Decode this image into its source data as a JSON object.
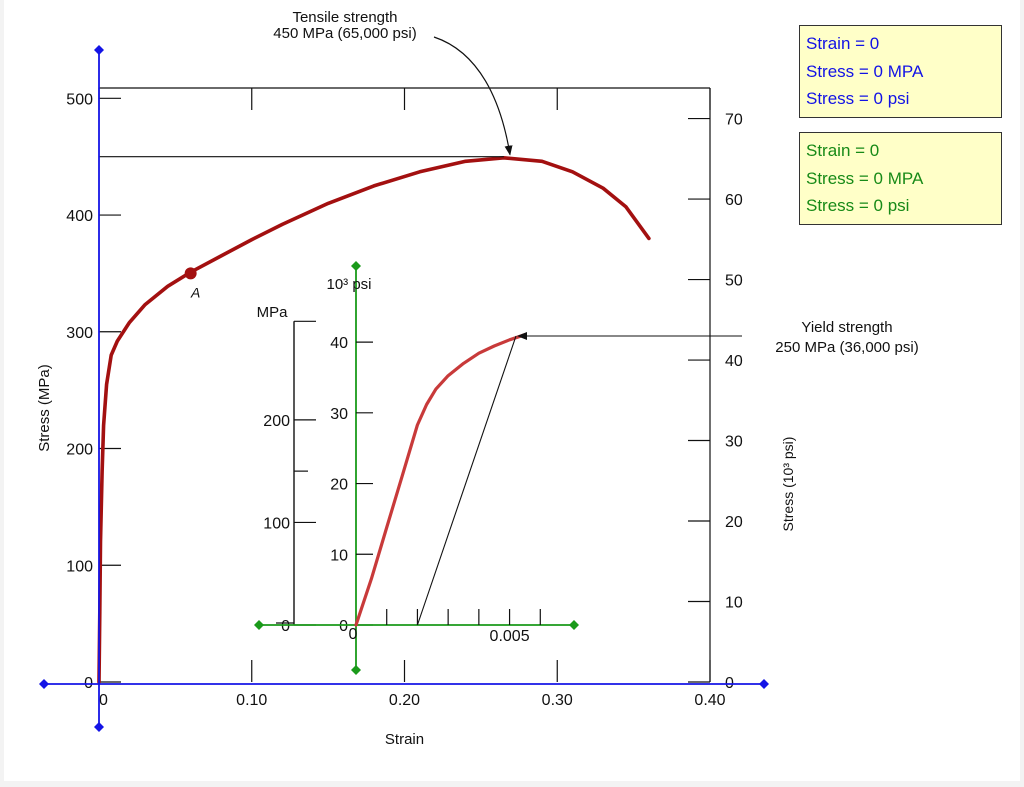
{
  "chart_data": [
    {
      "type": "line",
      "name": "main-plot",
      "xlabel": "Strain",
      "ylabel": "Stress (MPa)",
      "ylabel_right": "Stress (10³ psi)",
      "xlim": [
        0,
        0.4
      ],
      "ylim": [
        0,
        500
      ],
      "x_ticks": [
        "0",
        "0.10",
        "0.20",
        "0.30",
        "0.40"
      ],
      "y_ticks": [
        "0",
        "100",
        "200",
        "300",
        "400",
        "500"
      ],
      "y_right_ticks": [
        "0",
        "10",
        "20",
        "30",
        "40",
        "50",
        "60",
        "70"
      ],
      "series": [
        {
          "color": "#a31010",
          "x": [
            0.0,
            0.0005,
            0.001,
            0.002,
            0.003,
            0.005,
            0.008,
            0.012,
            0.02,
            0.03,
            0.045,
            0.06,
            0.08,
            0.1,
            0.12,
            0.15,
            0.18,
            0.21,
            0.24,
            0.265,
            0.29,
            0.31,
            0.33,
            0.345,
            0.36
          ],
          "y": [
            0,
            60,
            120,
            180,
            220,
            255,
            280,
            292,
            308,
            323,
            339,
            351,
            365,
            379,
            392,
            410,
            425,
            437,
            446,
            449,
            446,
            437,
            423,
            407,
            380
          ]
        }
      ],
      "point": {
        "label": "A",
        "x": 0.06,
        "y": 350
      },
      "annotations": [
        {
          "text": [
            "Tensile strength",
            "450 MPa (65,000 psi)"
          ],
          "x": 0.265,
          "y": 450
        },
        {
          "text": [
            "Yield strength",
            "250 MPa (36,000 psi)"
          ],
          "x": 0.27,
          "y": 300
        }
      ]
    },
    {
      "type": "line",
      "name": "inset-plot",
      "ylabel": "MPa",
      "ylabel_right": "10³ psi",
      "xlim": [
        0,
        0.007
      ],
      "ylim": [
        0,
        310
      ],
      "x_ticks": [
        "0",
        "0.005"
      ],
      "y_ticks": [
        "0",
        "100",
        "200"
      ],
      "y_right_ticks": [
        "0",
        "10",
        "20",
        "30",
        "40"
      ],
      "series": [
        {
          "color": "#c83a3a",
          "x": [
            0.0,
            0.0005,
            0.001,
            0.0015,
            0.002,
            0.0023,
            0.0026,
            0.003,
            0.0035,
            0.004,
            0.0045,
            0.005,
            0.0055
          ],
          "y": [
            0,
            45,
            95,
            145,
            195,
            215,
            230,
            243,
            255,
            265,
            272,
            278,
            283
          ]
        }
      ]
    }
  ],
  "readouts": {
    "main": {
      "color": "#1212e6",
      "lines": [
        "Strain = 0",
        "Stress = 0 MPA",
        "Stress = 0 psi"
      ]
    },
    "inset": {
      "color": "#178a17",
      "lines": [
        "Strain = 0",
        "Stress = 0 MPA",
        "Stress = 0 psi"
      ]
    }
  },
  "colors": {
    "main_axes": "#1414e6",
    "inset_axes": "#1a9a1a",
    "curve": "#a31010",
    "readout_bg": "#ffffc8"
  }
}
